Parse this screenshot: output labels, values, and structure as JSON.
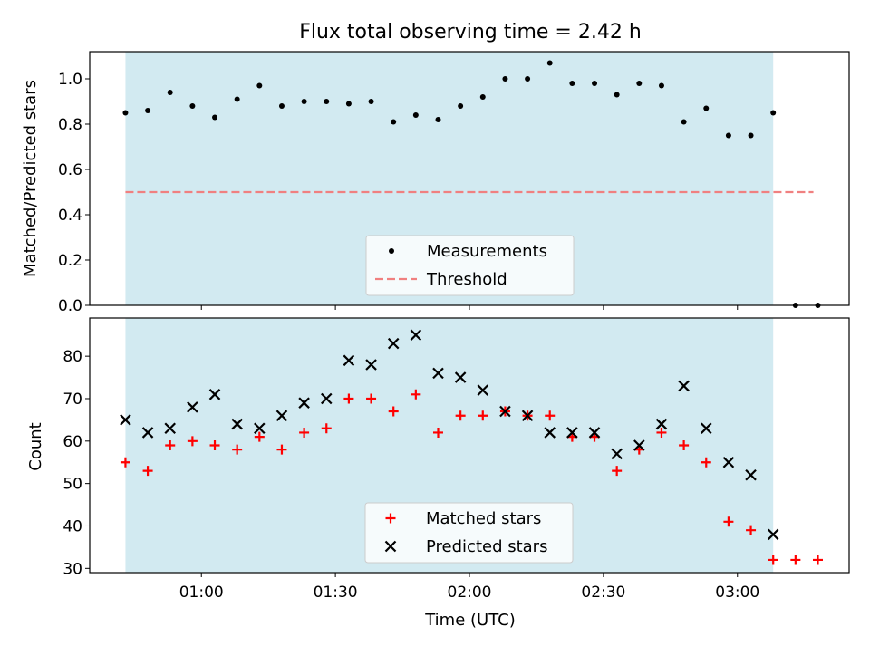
{
  "title": "Flux total observing time = 2.42 h",
  "colors": {
    "band": "#add8e6",
    "measurement": "#000000",
    "threshold": "#f08080",
    "matched": "#ff0000",
    "predicted": "#000000"
  },
  "chart_data": [
    {
      "type": "scatter",
      "panel": "top",
      "ylabel": "Matched/Predicted stars",
      "xlabel": "",
      "ylim": [
        0,
        1.12
      ],
      "yticks": [
        0.0,
        0.2,
        0.4,
        0.6,
        0.8,
        1.0
      ],
      "ytick_labels": [
        "0.0",
        "0.2",
        "0.4",
        "0.6",
        "0.8",
        "1.0"
      ],
      "x_unit": "minutes after 00:00 UTC",
      "xlim": [
        35,
        205
      ],
      "shaded_interval": [
        43,
        188
      ],
      "series": [
        {
          "name": "Measurements",
          "marker": "dot",
          "x": [
            43,
            48,
            53,
            58,
            63,
            68,
            73,
            78,
            83,
            88,
            93,
            98,
            103,
            108,
            113,
            118,
            123,
            128,
            133,
            138,
            143,
            148,
            153,
            158,
            163,
            168,
            173,
            178,
            183,
            188,
            193,
            198
          ],
          "y": [
            0.85,
            0.86,
            0.94,
            0.88,
            0.83,
            0.91,
            0.97,
            0.88,
            0.9,
            0.9,
            0.89,
            0.9,
            0.81,
            0.84,
            0.82,
            0.88,
            0.92,
            1.0,
            1.0,
            1.07,
            0.98,
            0.98,
            0.93,
            0.98,
            0.97,
            0.81,
            0.87,
            0.75,
            0.75,
            0.85,
            0.0,
            0.0
          ]
        },
        {
          "name": "Threshold",
          "marker": "dashed-line",
          "x": [
            43,
            197
          ],
          "y": [
            0.5,
            0.5
          ]
        }
      ],
      "legend": [
        "Measurements",
        "Threshold"
      ],
      "legend_position": "lower-center"
    },
    {
      "type": "scatter",
      "panel": "bottom",
      "ylabel": "Count",
      "xlabel": "Time (UTC)",
      "ylim": [
        29,
        89
      ],
      "yticks": [
        30,
        40,
        50,
        60,
        70,
        80
      ],
      "ytick_labels": [
        "30",
        "40",
        "50",
        "60",
        "70",
        "80"
      ],
      "xticks": [
        60,
        90,
        120,
        150,
        180
      ],
      "xtick_labels": [
        "01:00",
        "01:30",
        "02:00",
        "02:30",
        "03:00"
      ],
      "x_unit": "minutes after 00:00 UTC",
      "xlim": [
        35,
        205
      ],
      "shaded_interval": [
        43,
        188
      ],
      "series": [
        {
          "name": "Matched stars",
          "marker": "plus",
          "x": [
            43,
            48,
            53,
            58,
            63,
            68,
            73,
            78,
            83,
            88,
            93,
            98,
            103,
            108,
            113,
            118,
            123,
            128,
            133,
            138,
            143,
            148,
            153,
            158,
            163,
            168,
            173,
            178,
            183,
            188,
            193,
            198
          ],
          "y": [
            55,
            53,
            59,
            60,
            59,
            58,
            61,
            58,
            62,
            63,
            70,
            70,
            67,
            71,
            62,
            66,
            66,
            67,
            66,
            66,
            61,
            61,
            53,
            58,
            62,
            59,
            55,
            41,
            39,
            32,
            32,
            32
          ]
        },
        {
          "name": "Predicted stars",
          "marker": "x",
          "x": [
            43,
            48,
            53,
            58,
            63,
            68,
            73,
            78,
            83,
            88,
            93,
            98,
            103,
            108,
            113,
            118,
            123,
            128,
            133,
            138,
            143,
            148,
            153,
            158,
            163,
            168,
            173,
            178,
            183,
            188
          ],
          "y": [
            65,
            62,
            63,
            68,
            71,
            64,
            63,
            66,
            69,
            70,
            79,
            78,
            83,
            85,
            76,
            75,
            72,
            67,
            66,
            62,
            62,
            62,
            57,
            59,
            64,
            73,
            63,
            55,
            52,
            38
          ]
        }
      ],
      "legend": [
        "Matched stars",
        "Predicted stars"
      ],
      "legend_position": "lower-center"
    }
  ]
}
